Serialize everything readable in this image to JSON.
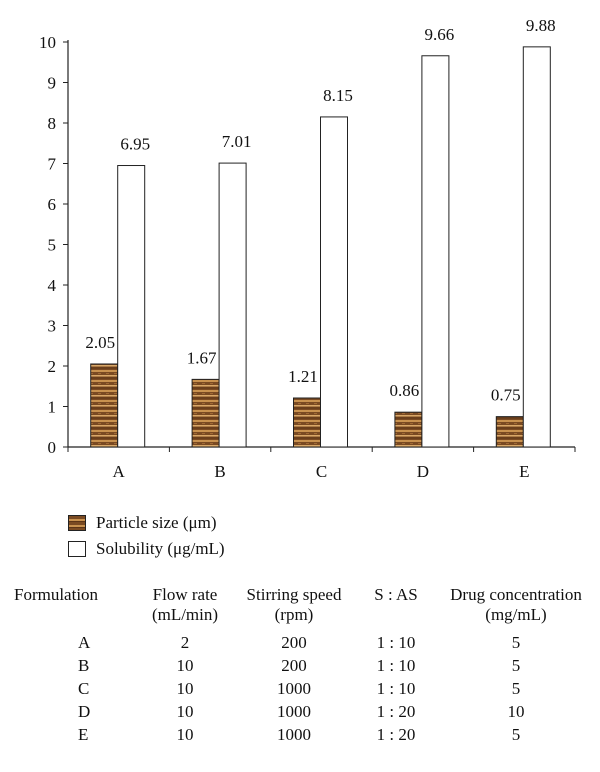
{
  "chart_data": {
    "type": "bar",
    "categories": [
      "A",
      "B",
      "C",
      "D",
      "E"
    ],
    "series": [
      {
        "name": "Particle size (μm)",
        "values": [
          2.05,
          1.67,
          1.21,
          0.86,
          0.75
        ],
        "labels": [
          "2.05",
          "1.67",
          "1.21",
          "0.86",
          "0.75"
        ],
        "color": "#8a5a2b"
      },
      {
        "name": "Solubility (μg/mL)",
        "values": [
          6.95,
          7.01,
          8.15,
          9.66,
          9.88
        ],
        "labels": [
          "6.95",
          "7.01",
          "8.15",
          "9.66",
          "9.88"
        ],
        "color": "#ffffff"
      }
    ],
    "yticks": [
      "0",
      "1",
      "2",
      "3",
      "4",
      "5",
      "6",
      "7",
      "8",
      "9",
      "10"
    ],
    "ylim": [
      0,
      10
    ],
    "grid": false,
    "legend": "bottom-left"
  },
  "table": {
    "headers": [
      {
        "line1": "Formulation",
        "line2": ""
      },
      {
        "line1": "Flow rate",
        "line2": "(mL/min)"
      },
      {
        "line1": "Stirring speed",
        "line2": "(rpm)"
      },
      {
        "line1": "S : AS",
        "line2": ""
      },
      {
        "line1": "Drug concentration",
        "line2": "(mg/mL)"
      }
    ],
    "rows": [
      [
        "A",
        "2",
        "200",
        "1 : 10",
        "5"
      ],
      [
        "B",
        "10",
        "200",
        "1 : 10",
        "5"
      ],
      [
        "C",
        "10",
        "1000",
        "1 : 10",
        "5"
      ],
      [
        "D",
        "10",
        "1000",
        "1 : 20",
        "10"
      ],
      [
        "E",
        "10",
        "1000",
        "1 : 20",
        "5"
      ]
    ]
  }
}
